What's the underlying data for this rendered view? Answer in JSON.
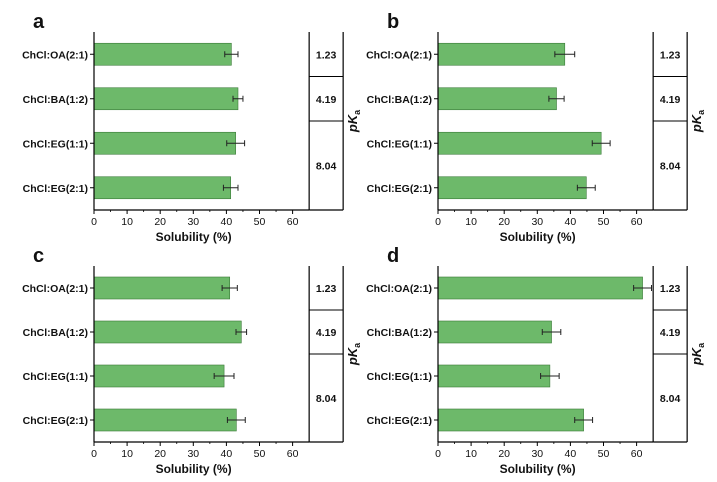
{
  "chart_data": [
    {
      "panel": "a",
      "type": "bar",
      "orientation": "horizontal",
      "categories": [
        "ChCl:OA(2:1)",
        "ChCl:BA(1:2)",
        "ChCl:EG(1:1)",
        "ChCl:EG(2:1)"
      ],
      "values": [
        41.5,
        43.5,
        42.8,
        41.3
      ],
      "errors": [
        2.0,
        1.5,
        2.7,
        2.2
      ],
      "xlabel": "Solubility (%)",
      "xlim": [
        0,
        65
      ],
      "xticks": [
        0,
        10,
        20,
        30,
        40,
        50,
        60
      ],
      "pka_label": "pK",
      "pka_subscript": "a",
      "pka_values": [
        "1.23",
        "4.19",
        "8.04"
      ]
    },
    {
      "panel": "b",
      "type": "bar",
      "orientation": "horizontal",
      "categories": [
        "ChCl:OA(2:1)",
        "ChCl:BA(1:2)",
        "ChCl:EG(1:1)",
        "ChCl:EG(2:1)"
      ],
      "values": [
        38.3,
        35.8,
        49.3,
        44.8
      ],
      "errors": [
        3.0,
        2.3,
        2.7,
        2.7
      ],
      "xlabel": "Solubility (%)",
      "xlim": [
        0,
        65
      ],
      "xticks": [
        0,
        10,
        20,
        30,
        40,
        50,
        60
      ],
      "pka_label": "pK",
      "pka_subscript": "a",
      "pka_values": [
        "1.23",
        "4.19",
        "8.04"
      ]
    },
    {
      "panel": "c",
      "type": "bar",
      "orientation": "horizontal",
      "categories": [
        "ChCl:OA(2:1)",
        "ChCl:BA(1:2)",
        "ChCl:EG(1:1)",
        "ChCl:EG(2:1)"
      ],
      "values": [
        41.0,
        44.5,
        39.3,
        43.0
      ],
      "errors": [
        2.3,
        1.6,
        3.0,
        2.7
      ],
      "xlabel": "Solubility (%)",
      "xlim": [
        0,
        65
      ],
      "xticks": [
        0,
        10,
        20,
        30,
        40,
        50,
        60
      ],
      "pka_label": "pK",
      "pka_subscript": "a",
      "pka_values": [
        "1.23",
        "4.19",
        "8.04"
      ]
    },
    {
      "panel": "d",
      "type": "bar",
      "orientation": "horizontal",
      "categories": [
        "ChCl:OA(2:1)",
        "ChCl:BA(1:2)",
        "ChCl:EG(1:1)",
        "ChCl:EG(2:1)"
      ],
      "values": [
        61.8,
        34.3,
        33.8,
        44.0
      ],
      "errors": [
        2.7,
        2.8,
        2.8,
        2.7
      ],
      "xlabel": "Solubility (%)",
      "xlim": [
        0,
        65
      ],
      "xticks": [
        0,
        10,
        20,
        30,
        40,
        50,
        60
      ],
      "pka_label": "pK",
      "pka_subscript": "a",
      "pka_values": [
        "1.23",
        "4.19",
        "8.04"
      ]
    }
  ],
  "colors": {
    "bar_fill": "#6db96a",
    "bar_stroke": "#3a7a38",
    "axis": "#000000",
    "text": "#111111"
  }
}
